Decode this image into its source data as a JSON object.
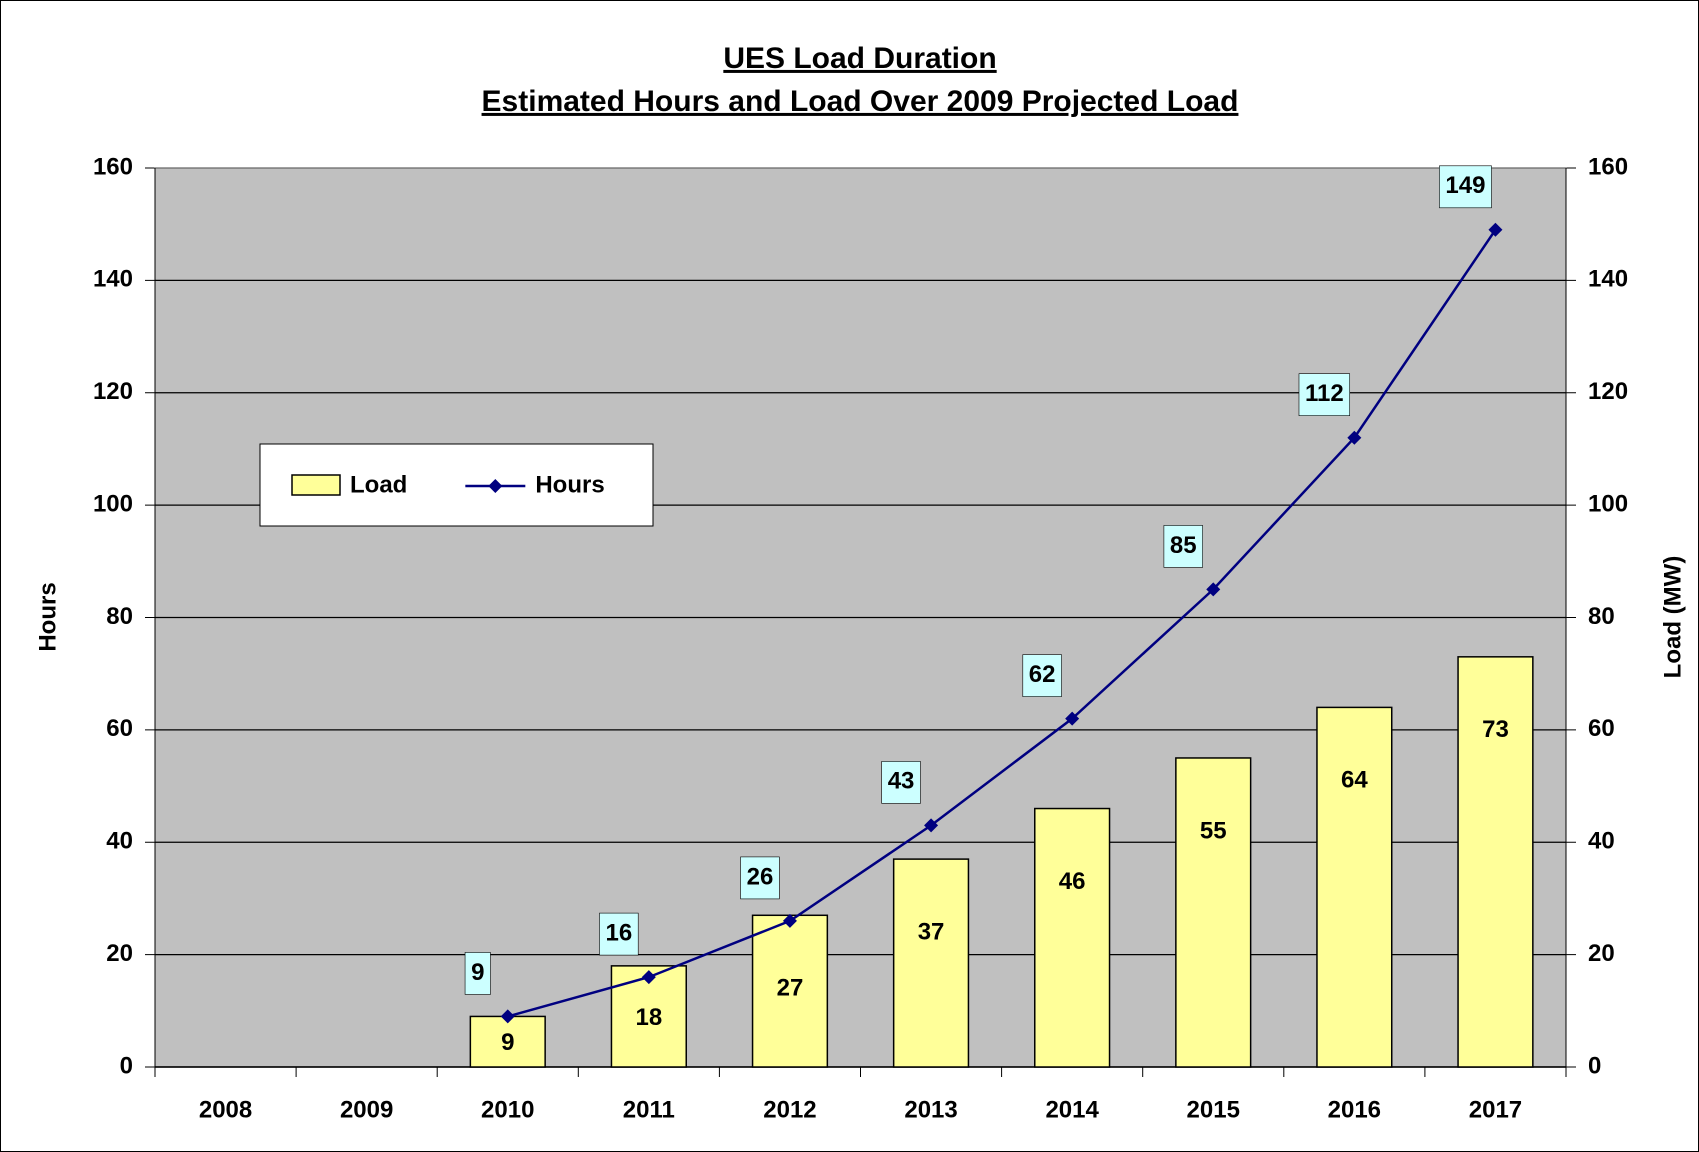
{
  "chart_data": {
    "type": "combo",
    "title": "UES Load Duration",
    "subtitle": "Estimated Hours and Load Over 2009 Projected Load",
    "categories": [
      "2008",
      "2009",
      "2010",
      "2011",
      "2012",
      "2013",
      "2014",
      "2015",
      "2016",
      "2017"
    ],
    "series": [
      {
        "name": "Load",
        "type": "bar",
        "axis": "y2",
        "color": "#ffff99",
        "values": [
          null,
          null,
          9,
          18,
          27,
          37,
          46,
          55,
          64,
          73
        ]
      },
      {
        "name": "Hours",
        "type": "line",
        "color": "#000080",
        "values": [
          null,
          null,
          9,
          16,
          26,
          43,
          62,
          85,
          112,
          149
        ]
      }
    ],
    "ylabel": "Hours",
    "y2label": "Load (MW)",
    "ylim": [
      0,
      160
    ],
    "yticks": [
      0,
      20,
      40,
      60,
      80,
      100,
      120,
      140,
      160
    ],
    "y2lim": [
      0,
      160
    ],
    "y2ticks": [
      0,
      20,
      40,
      60,
      80,
      100,
      120,
      140,
      160
    ],
    "grid": true,
    "plot_background": "#c0c0c0",
    "label_box_color": "#ccffff"
  }
}
